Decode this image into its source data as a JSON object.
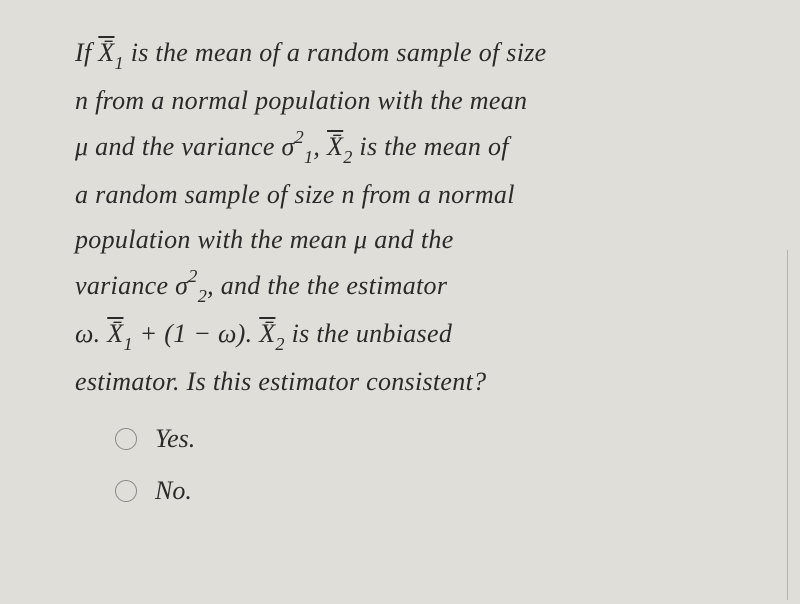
{
  "question": {
    "text_parts": {
      "p1a": "If ",
      "x1bar": "X̄",
      "sub1": "1",
      "p1b": " is the mean of a random sample of size",
      "p2": "n from a normal population with the mean",
      "p3a": "μ and the variance σ",
      "sigma1_sup": "2",
      "sigma1_sub": "1",
      "p3b": ", ",
      "x2bar": "X̄",
      "sub2": "2",
      "p3c": " is the mean of",
      "p4": "a random sample of size n from a normal",
      "p5": "population with the mean μ and the",
      "p6a": "variance σ",
      "sigma2_sup": "2",
      "sigma2_sub": "2",
      "p6b": ", and the the estimator",
      "p7a": "ω. ",
      "p7_x1bar": "X̄",
      "p7_sub1": "1",
      "p7b": " + (1 − ω). ",
      "p7_x2bar": "X̄",
      "p7_sub2": "2",
      "p7c": " is the unbiased",
      "p8": "estimator. Is this estimator consistent?"
    }
  },
  "options": {
    "opt1": "Yes.",
    "opt2": "No."
  },
  "styles": {
    "background_color": "#e0ded8",
    "text_color": "#2a2a2a",
    "font_size_pt": 26,
    "radio_border_color": "#888888"
  }
}
